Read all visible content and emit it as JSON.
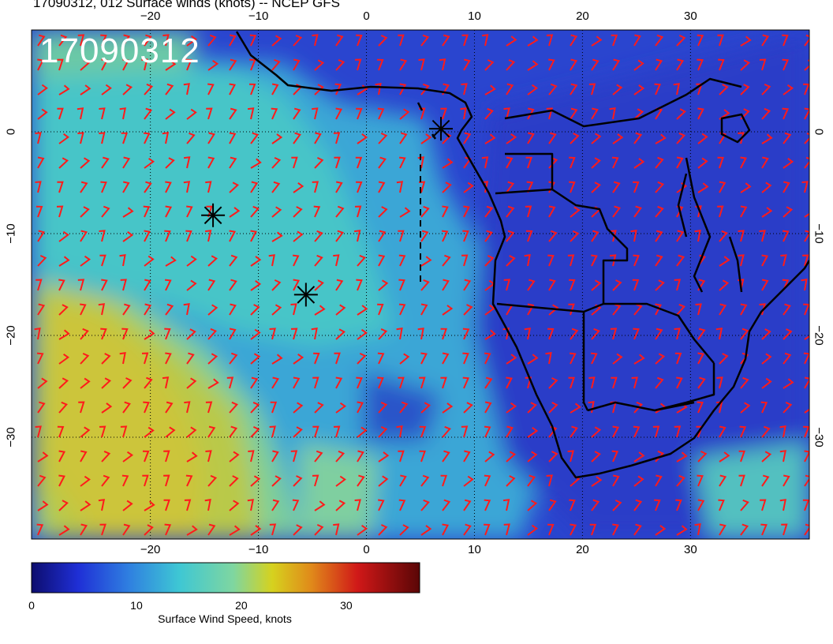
{
  "title": "17090312, 012 Surface winds (knots) -- NCEP GFS",
  "stamp": "17090312",
  "map": {
    "lon_range": [
      -31,
      41
    ],
    "lat_range": [
      -40,
      10
    ],
    "lon_ticks": [
      {
        "value": -20,
        "label": "−20"
      },
      {
        "value": -10,
        "label": "−10"
      },
      {
        "value": 0,
        "label": "0"
      },
      {
        "value": 10,
        "label": "10"
      },
      {
        "value": 20,
        "label": "20"
      },
      {
        "value": 30,
        "label": "30"
      }
    ],
    "lat_ticks": [
      {
        "value": 0,
        "label": "0"
      },
      {
        "value": -10,
        "label": "−10"
      },
      {
        "value": -20,
        "label": "−20"
      },
      {
        "value": -30,
        "label": "−30"
      }
    ],
    "markers": [
      {
        "name": "asterisk-marker-1",
        "lon": -14.2,
        "lat": -8.2
      },
      {
        "name": "asterisk-marker-2",
        "lon": -5.6,
        "lat": -16.0
      },
      {
        "name": "asterisk-marker-3",
        "lon": 6.9,
        "lat": 0.3
      }
    ],
    "colors": {
      "ocean_low": "#2b3fd0",
      "ocean_mid": "#2fa8d8",
      "teal": "#46c8c8",
      "high": "#c8c83a",
      "barb": "#ff1a1a",
      "coast": "#000000"
    }
  },
  "colorbar": {
    "ticks": [
      {
        "value": 0,
        "label": "0"
      },
      {
        "value": 10,
        "label": "10"
      },
      {
        "value": 20,
        "label": "20"
      },
      {
        "value": 30,
        "label": "30"
      }
    ],
    "range": [
      0,
      37
    ],
    "label": "Surface Wind Speed, knots"
  }
}
